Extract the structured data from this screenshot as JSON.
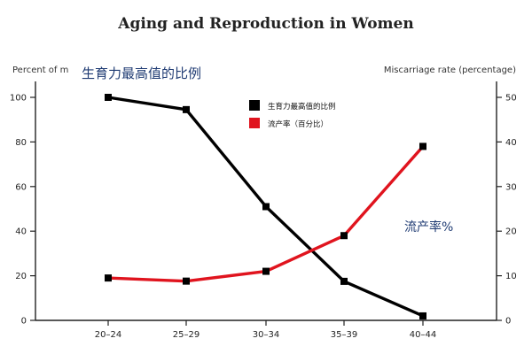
{
  "chart_data": {
    "type": "line",
    "title": "Aging and Reproduction in Women",
    "categories": [
      "20–24",
      "25–29",
      "30–34",
      "35–39",
      "40–44"
    ],
    "ylabel_left": "Percent of m",
    "ylabel_right": "Miscarriage rate (percentage)",
    "left_axis": {
      "ylim": [
        0,
        100
      ],
      "ticks": [
        "0",
        "20",
        "40",
        "60",
        "80",
        "100"
      ]
    },
    "right_axis": {
      "ylim": [
        0,
        50
      ],
      "ticks": [
        "0",
        "10",
        "20",
        "30",
        "40",
        "50"
      ]
    },
    "series": [
      {
        "name": "生育力最高值的比例",
        "axis": "left",
        "color": "#000000",
        "marker": "square",
        "values": [
          100,
          94.5,
          51,
          17.5,
          2
        ]
      },
      {
        "name": "流产率（百分比）",
        "axis": "right",
        "color": "#e0141e",
        "marker": "square",
        "values": [
          9.5,
          8.8,
          11,
          19,
          39
        ]
      }
    ],
    "annotations": [
      {
        "text": "生育力最高值的比例",
        "color": "#1f3b73"
      },
      {
        "text": "流产率%",
        "color": "#1f3b73"
      }
    ],
    "legend": {
      "position": "top-center"
    },
    "grid": false
  }
}
